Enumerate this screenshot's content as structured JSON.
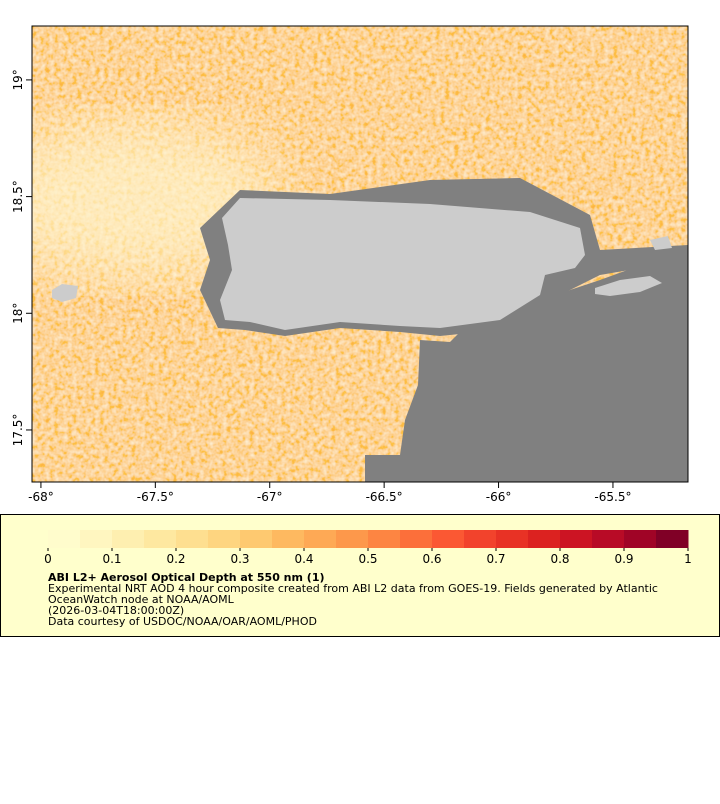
{
  "map": {
    "type": "map",
    "xlim": [
      -68.039,
      -65.172
    ],
    "ylim": [
      17.277,
      19.231
    ],
    "xticks": [
      {
        "value": -68,
        "label": "-68°"
      },
      {
        "value": -67.5,
        "label": "-67.5°"
      },
      {
        "value": -67,
        "label": "-67°"
      },
      {
        "value": -66.5,
        "label": "-66.5°"
      },
      {
        "value": -66,
        "label": "-66°"
      },
      {
        "value": -65.5,
        "label": "-65.5°"
      }
    ],
    "yticks": [
      {
        "value": 17.5,
        "label": "17.5°"
      },
      {
        "value": 18,
        "label": "18°"
      },
      {
        "value": 18.5,
        "label": "18.5°"
      },
      {
        "value": 19,
        "label": "19°"
      }
    ]
  },
  "legend": {
    "colorbar": {
      "lim": [
        0,
        1
      ],
      "ticks": [
        0,
        0.1,
        0.2,
        0.3,
        0.4,
        0.5,
        0.6,
        0.7,
        0.8,
        0.9,
        1
      ],
      "colors": [
        "#fffccc",
        "#fff6c0",
        "#feefb0",
        "#fee8a0",
        "#fedf90",
        "#fed580",
        "#fec970",
        "#feb960",
        "#fea955",
        "#fd984b",
        "#fd8542",
        "#fc6f3a",
        "#fb5833",
        "#f2432c",
        "#e83225",
        "#dc2220",
        "#cc1423",
        "#b80b26",
        "#a00426",
        "#800026"
      ]
    },
    "title": "ABI L2+ Aerosol Optical Depth at 550 nm (1)",
    "lines": [
      "Experimental NRT AOD 4 hour composite created from ABI L2 data from GOES-19. Fields generated by Atlantic",
      "OceanWatch node at NOAA/AOML",
      "(2026-03-04T18:00:00Z)",
      "Data courtesy of USDOC/NOAA/OAR/AOML/PHOD"
    ]
  }
}
